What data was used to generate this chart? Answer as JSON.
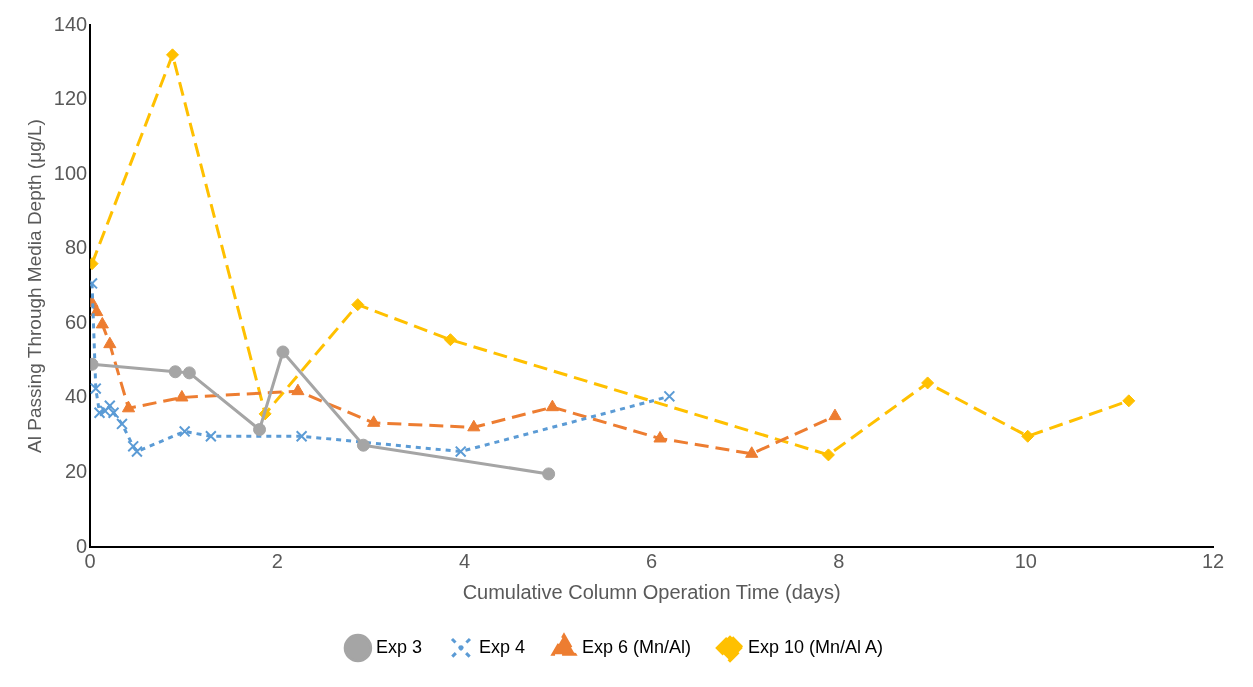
{
  "chart_data": {
    "type": "line",
    "xlabel": "Cumulative Column Operation Time (days)",
    "ylabel": "Al Passing Through Media Depth (μg/L)",
    "xlim": [
      0,
      12
    ],
    "xticks": [
      0,
      2,
      4,
      6,
      8,
      10,
      12
    ],
    "ylim": [
      0,
      140
    ],
    "yticks": [
      0,
      20,
      40,
      60,
      80,
      100,
      120,
      140
    ],
    "grid": false,
    "legend": "bottom",
    "series": [
      {
        "name": "Exp 3",
        "color": "#a5a5a5",
        "marker": "circle",
        "line_style": "solid",
        "x": [
          0.02,
          0.91,
          1.06,
          1.81,
          2.06,
          2.92,
          4.9
        ],
        "values": [
          49,
          47,
          46.7,
          31.5,
          52.3,
          27.3,
          19.6
        ]
      },
      {
        "name": "Exp 4",
        "color": "#5b9bd5",
        "marker": "cross",
        "line_style": "dotted",
        "x": [
          0.02,
          0.06,
          0.1,
          0.16,
          0.21,
          0.25,
          0.34,
          0.46,
          0.5,
          1.01,
          1.29,
          2.26,
          3.96,
          6.19
        ],
        "values": [
          70.7,
          42.5,
          36,
          36.5,
          37.9,
          36,
          33,
          27,
          25.6,
          31,
          29.7,
          29.7,
          25.6,
          40.4
        ]
      },
      {
        "name": "Exp 6 (Mn/Al)",
        "color": "#ed7d31",
        "marker": "triangle",
        "line_style": "dashed",
        "x": [
          0.02,
          0.07,
          0.13,
          0.21,
          0.41,
          0.98,
          2.22,
          3.03,
          4.1,
          4.94,
          6.09,
          7.07,
          7.96
        ],
        "values": [
          65.4,
          63,
          59.7,
          54.4,
          37.2,
          40.1,
          41.8,
          33.3,
          32.1,
          37.5,
          29.1,
          25,
          35.1
        ]
      },
      {
        "name": "Exp 10 (Mn/Al A)",
        "color": "#ffc000",
        "marker": "diamond",
        "line_style": "dashed",
        "x": [
          0.02,
          0.88,
          1.87,
          2.86,
          3.85,
          7.89,
          8.95,
          10.02,
          11.1
        ],
        "values": [
          76,
          132,
          35.7,
          65,
          55.6,
          24.7,
          44,
          29.7,
          39.2
        ]
      }
    ]
  }
}
